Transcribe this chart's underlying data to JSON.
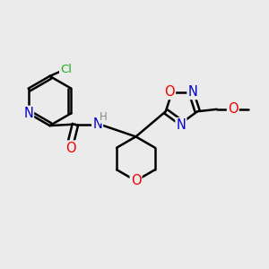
{
  "background_color": "#ebebeb",
  "bond_color": "#000000",
  "bond_width": 1.8,
  "atom_colors": {
    "N": "#0000cc",
    "O": "#ee0000",
    "Cl": "#22aa22",
    "C": "#000000",
    "H": "#888888"
  },
  "font_size": 9.5,
  "fig_width": 3.0,
  "fig_height": 3.0,
  "dpi": 100
}
